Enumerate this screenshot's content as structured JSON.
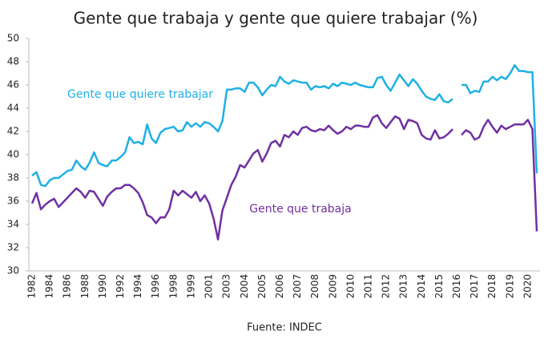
{
  "chart_data": {
    "type": "line",
    "title": "Gente que trabaja y gente que quiere trabajar (%)",
    "source": "Fuente: INDEC",
    "categories": [
      "1982",
      null,
      null,
      null,
      "1984",
      null,
      null,
      null,
      "1986",
      null,
      null,
      null,
      "1988",
      null,
      null,
      null,
      "1990",
      null,
      null,
      null,
      "1992",
      null,
      null,
      null,
      "1994",
      null,
      null,
      null,
      "1996",
      null,
      null,
      null,
      "1998",
      null,
      null,
      null,
      "1999",
      null,
      null,
      null,
      "2001",
      null,
      null,
      null,
      "2003",
      null,
      null,
      null,
      "2004",
      null,
      null,
      null,
      "2005",
      null,
      null,
      null,
      "2006",
      null,
      null,
      null,
      "2007",
      null,
      null,
      null,
      "2008",
      null,
      null,
      null,
      "2009",
      null,
      null,
      null,
      "2010",
      null,
      null,
      null,
      "2011",
      null,
      null,
      null,
      "2012",
      null,
      null,
      null,
      "2013",
      null,
      null,
      null,
      "2014",
      null,
      null,
      null,
      "2015",
      null,
      null,
      null,
      "2016",
      null,
      null,
      null,
      "2017",
      null,
      null,
      null,
      "2018",
      null,
      null,
      null,
      "2019",
      null,
      null,
      null,
      "2020",
      null,
      null
    ],
    "series": [
      {
        "name": "Gente que quiere trabajar",
        "color": "#1fb0e4",
        "values": [
          38.2,
          38.5,
          37.4,
          37.3,
          37.8,
          38.0,
          38.0,
          38.3,
          38.6,
          38.7,
          39.5,
          39.0,
          38.7,
          39.3,
          40.2,
          39.3,
          39.1,
          39.0,
          39.5,
          39.5,
          39.8,
          40.2,
          41.5,
          41.0,
          41.1,
          40.9,
          42.6,
          41.4,
          41.0,
          41.9,
          42.2,
          42.3,
          42.4,
          42.0,
          42.1,
          42.8,
          42.4,
          42.7,
          42.4,
          42.8,
          42.7,
          42.4,
          42.0,
          42.9,
          45.6,
          45.6,
          45.7,
          45.7,
          45.4,
          46.2,
          46.2,
          45.8,
          45.1,
          45.6,
          46.0,
          45.9,
          46.7,
          46.3,
          46.1,
          46.4,
          46.3,
          46.2,
          46.2,
          45.6,
          45.9,
          45.8,
          45.9,
          45.7,
          46.1,
          45.9,
          46.2,
          46.1,
          46.0,
          46.2,
          46.0,
          45.9,
          45.8,
          45.8,
          46.6,
          46.7,
          46.0,
          45.5,
          46.2,
          46.9,
          46.4,
          45.9,
          46.5,
          46.1,
          45.5,
          45.0,
          44.8,
          44.7,
          45.2,
          44.6,
          44.5,
          44.8,
          null,
          46.0,
          46.0,
          45.3,
          45.5,
          45.4,
          46.3,
          46.3,
          46.7,
          46.4,
          46.7,
          46.5,
          47.0,
          47.7,
          47.2,
          47.2,
          47.1,
          47.1,
          38.4
        ]
      },
      {
        "name": "Gente que trabaja",
        "color": "#7030a0",
        "values": [
          35.8,
          36.7,
          35.3,
          35.7,
          36.0,
          36.2,
          35.5,
          35.9,
          36.3,
          36.7,
          37.1,
          36.8,
          36.3,
          36.9,
          36.8,
          36.2,
          35.6,
          36.4,
          36.8,
          37.1,
          37.1,
          37.4,
          37.4,
          37.1,
          36.7,
          35.9,
          34.8,
          34.6,
          34.1,
          34.6,
          34.6,
          35.3,
          36.9,
          36.5,
          36.9,
          36.6,
          36.3,
          36.8,
          36.0,
          36.5,
          35.8,
          34.5,
          32.7,
          35.2,
          36.3,
          37.4,
          38.1,
          39.1,
          38.9,
          39.5,
          40.1,
          40.4,
          39.4,
          40.1,
          41.0,
          41.2,
          40.7,
          41.7,
          41.5,
          42.0,
          41.7,
          42.3,
          42.4,
          42.1,
          42.0,
          42.2,
          42.1,
          42.5,
          42.1,
          41.8,
          42.0,
          42.4,
          42.2,
          42.5,
          42.5,
          42.4,
          42.4,
          43.2,
          43.4,
          42.7,
          42.3,
          42.8,
          43.3,
          43.1,
          42.2,
          43.0,
          42.9,
          42.7,
          41.7,
          41.4,
          41.3,
          42.1,
          41.4,
          41.5,
          41.8,
          42.2,
          null,
          41.7,
          42.1,
          41.9,
          41.3,
          41.5,
          42.4,
          43.0,
          42.4,
          41.9,
          42.5,
          42.2,
          42.4,
          42.6,
          42.6,
          42.6,
          43.0,
          42.2,
          33.4
        ]
      }
    ],
    "ylim": [
      30,
      50
    ],
    "yticks": [
      30,
      32,
      34,
      36,
      38,
      40,
      42,
      44,
      46,
      48,
      50
    ],
    "grid": false
  }
}
